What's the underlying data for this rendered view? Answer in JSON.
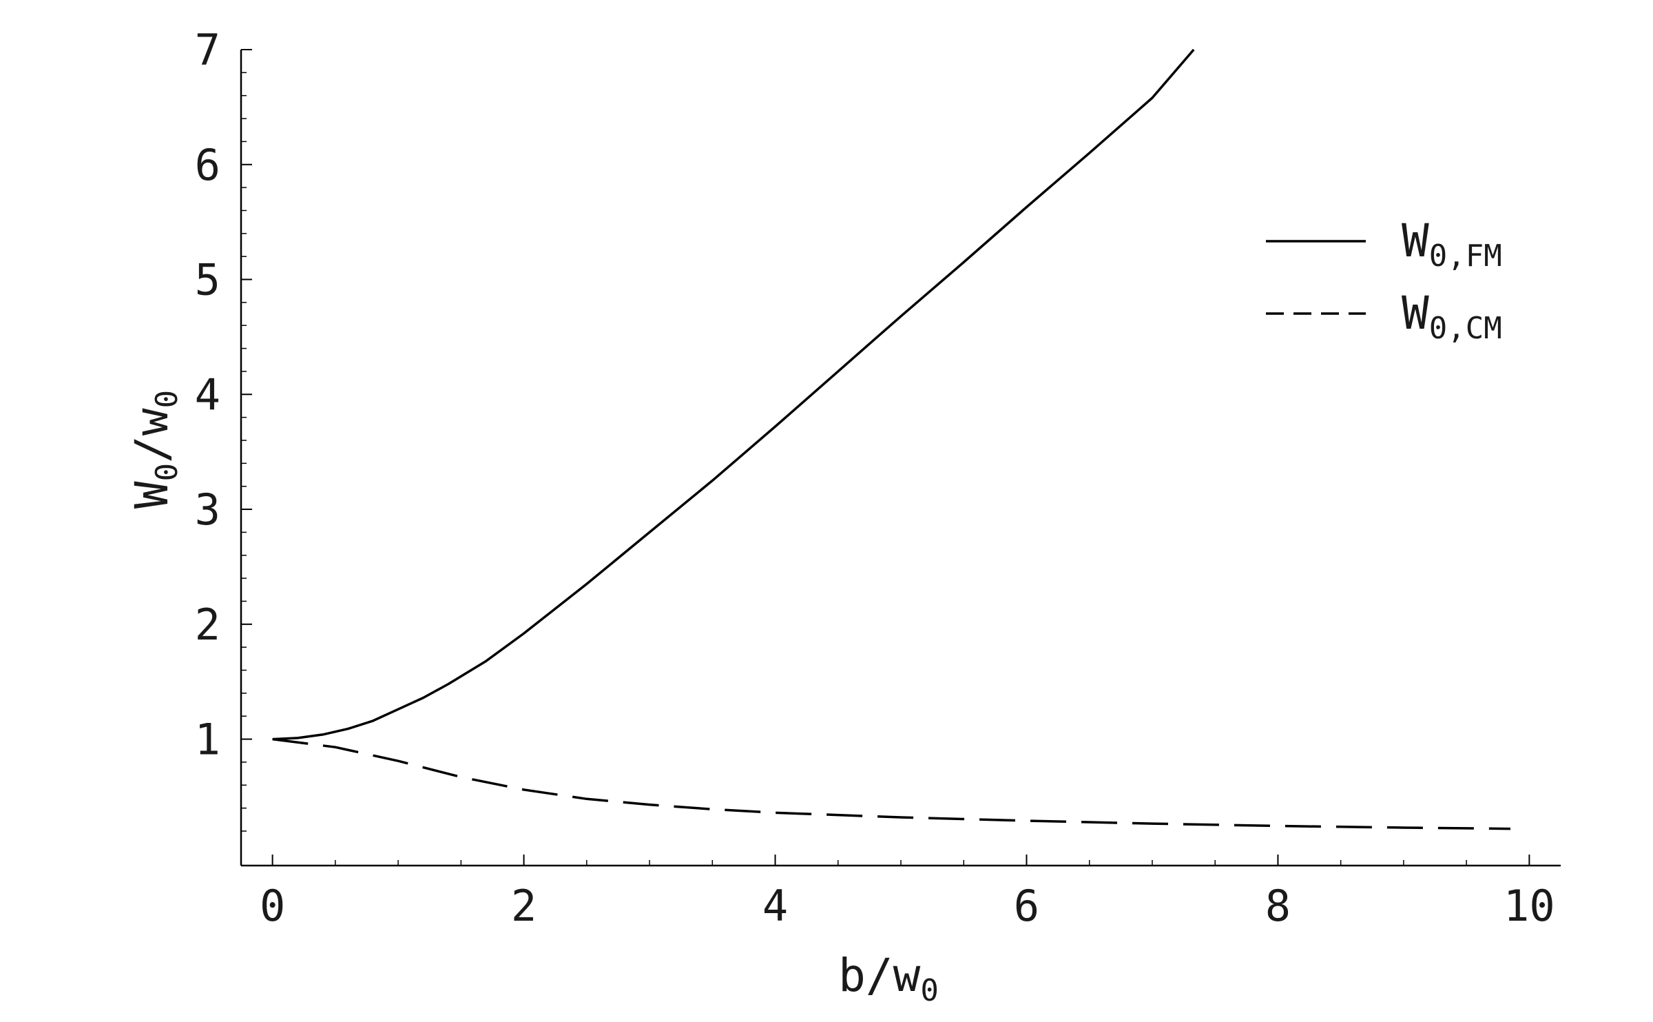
{
  "chart_data": {
    "type": "line",
    "title": "",
    "xlabel": {
      "main": "b/w",
      "sub": "0"
    },
    "ylabel": {
      "main": "W",
      "sub1": "0",
      "mid": "/w",
      "sub2": "0"
    },
    "xlim": [
      -0.25,
      10.25
    ],
    "ylim": [
      -0.1,
      7
    ],
    "x_ticks": [
      0,
      2,
      4,
      6,
      8,
      10
    ],
    "x_tick_labels": [
      "0",
      "2",
      "4",
      "6",
      "8",
      "10"
    ],
    "y_ticks": [
      1,
      2,
      3,
      4,
      5,
      6,
      7
    ],
    "y_tick_labels": [
      "1",
      "2",
      "3",
      "4",
      "5",
      "6",
      "7"
    ],
    "grid": false,
    "legend_position": "right",
    "series": [
      {
        "name": {
          "main": "W",
          "sub": "0,FM"
        },
        "style": "solid",
        "color": "#000000",
        "x": [
          0,
          0.2,
          0.4,
          0.6,
          0.8,
          1.0,
          1.2,
          1.4,
          1.7,
          2.0,
          2.5,
          3.0,
          3.5,
          4.0,
          4.5,
          5.0,
          5.5,
          6.0,
          6.5,
          7.0,
          7.33
        ],
        "y": [
          1.0,
          1.01,
          1.04,
          1.09,
          1.16,
          1.26,
          1.36,
          1.48,
          1.68,
          1.92,
          2.35,
          2.8,
          3.25,
          3.72,
          4.2,
          4.68,
          5.15,
          5.63,
          6.1,
          6.58,
          7.0
        ]
      },
      {
        "name": {
          "main": "W",
          "sub": "0,CM"
        },
        "style": "dashed",
        "color": "#000000",
        "x": [
          0,
          0.5,
          1.0,
          1.5,
          2.0,
          2.5,
          3.0,
          3.5,
          4.0,
          5.0,
          6.0,
          7.0,
          8.0,
          9.0,
          9.85
        ],
        "y": [
          1.0,
          0.93,
          0.81,
          0.67,
          0.56,
          0.48,
          0.43,
          0.39,
          0.36,
          0.32,
          0.29,
          0.265,
          0.245,
          0.23,
          0.22
        ]
      }
    ]
  }
}
